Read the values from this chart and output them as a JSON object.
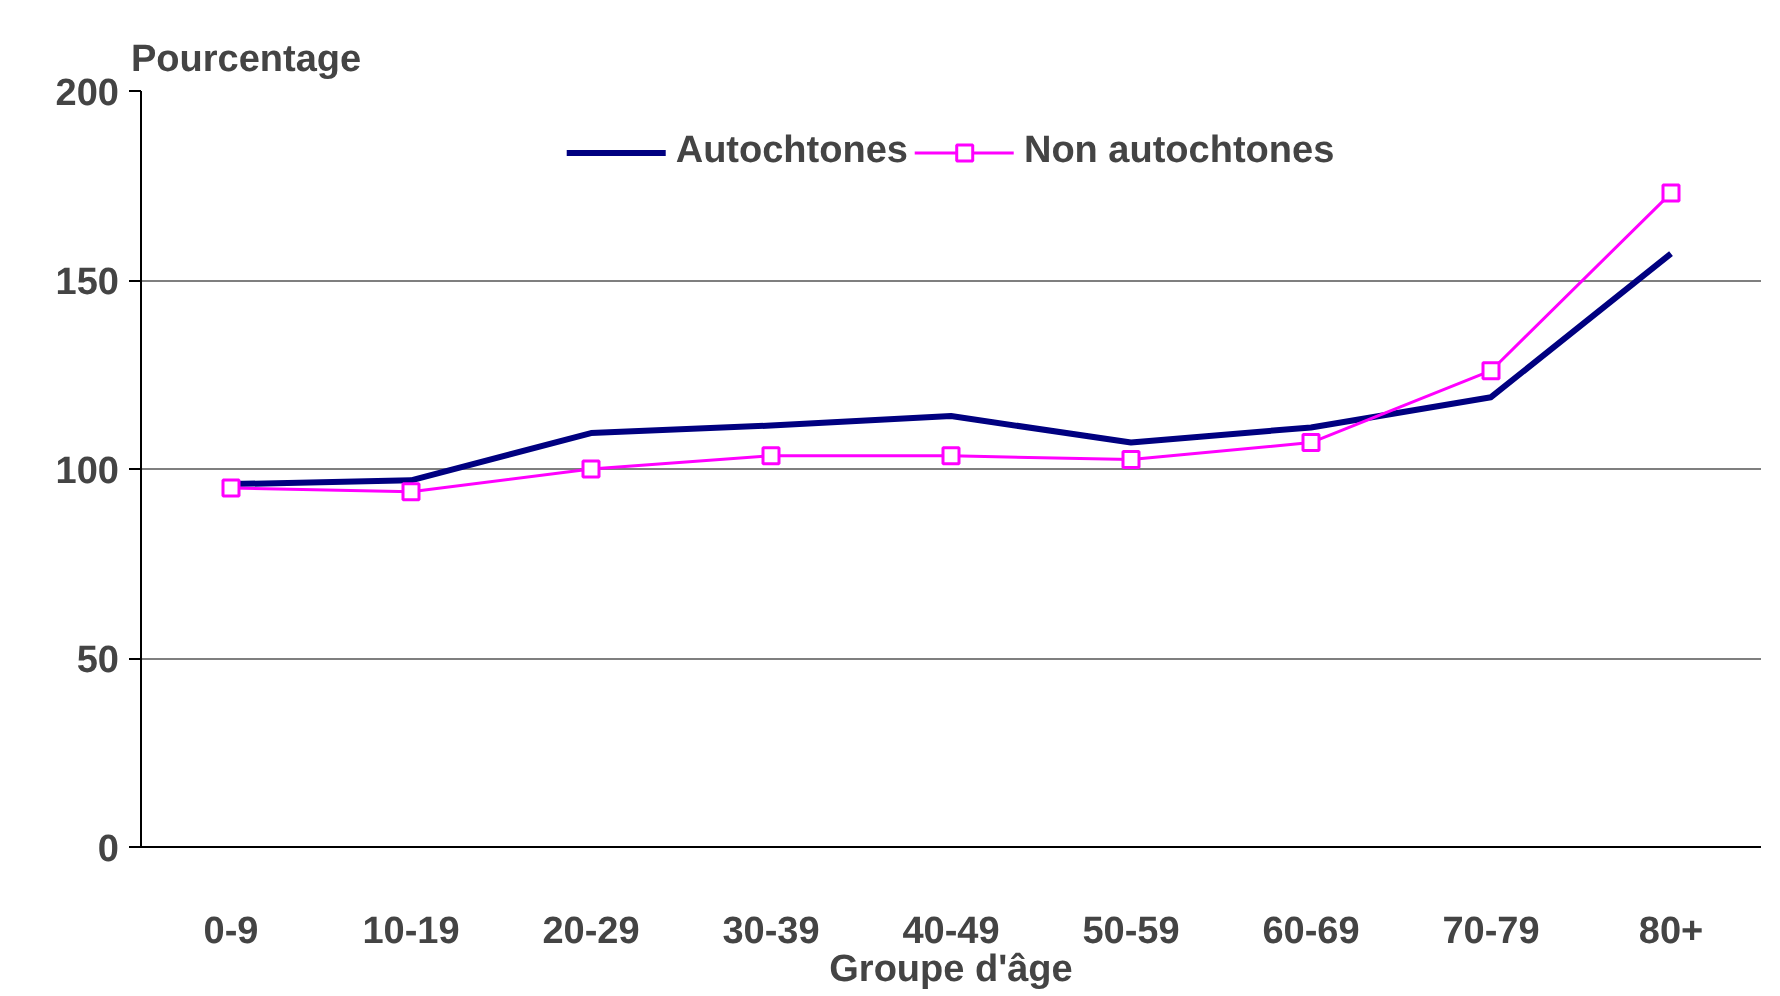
{
  "chart_data": {
    "type": "line",
    "ylabel": "Pourcentage",
    "xlabel": "Groupe d'âge",
    "categories": [
      "0-9",
      "10-19",
      "20-29",
      "30-39",
      "40-49",
      "50-59",
      "60-69",
      "70-79",
      "80+"
    ],
    "series": [
      {
        "name": "Autochtones",
        "color": "#000080",
        "marker": "none",
        "values": [
          96,
          97,
          109.5,
          111.5,
          114,
          107,
          111,
          119,
          157
        ]
      },
      {
        "name": "Non autochtones",
        "color": "#ff00ff",
        "marker": "square",
        "values": [
          95,
          94,
          100,
          103.5,
          103.5,
          102.5,
          107,
          126,
          173
        ]
      }
    ],
    "ylim": [
      0,
      200
    ],
    "yticks": [
      0,
      50,
      100,
      150,
      200
    ],
    "grid": "y",
    "legend": "top"
  }
}
